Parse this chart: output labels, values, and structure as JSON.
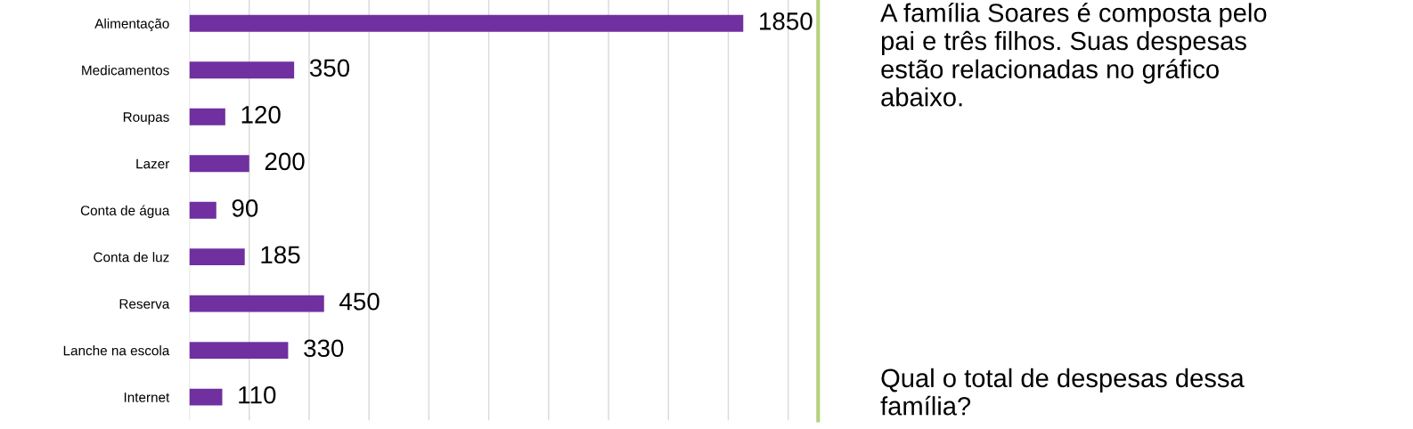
{
  "chart_data": {
    "type": "bar",
    "orientation": "horizontal",
    "categories": [
      "Alimentação",
      "Medicamentos",
      "Roupas",
      "Lazer",
      "Conta de água",
      "Conta de luz",
      "Reserva",
      "Lanche na escola",
      "Internet"
    ],
    "values": [
      1850,
      350,
      120,
      200,
      90,
      185,
      450,
      330,
      110
    ],
    "color": "#7030a0",
    "data_labels": true,
    "xlim": [
      0,
      2100
    ],
    "xticks": [
      {
        "value": 0,
        "label": null
      },
      {
        "value": 200,
        "label": null
      },
      {
        "value": 400,
        "label": null
      },
      {
        "value": 600,
        "label": null
      },
      {
        "value": 800,
        "label": null
      },
      {
        "value": 1000,
        "label": null
      },
      {
        "value": 1200,
        "label": null
      },
      {
        "value": 1400,
        "label": null
      },
      {
        "value": 1600,
        "label": null
      },
      {
        "value": 1800,
        "label": null
      },
      {
        "value": 2000,
        "label": null
      }
    ],
    "tick_labels": "y",
    "grid": "x",
    "annotations": [
      "A família Soares é composta pelo\npai e três filhos. Suas despesas\nestão relacionadas no gráfico\nabaixo.",
      "Qual o total de despesas dessa\nfamília?"
    ]
  }
}
